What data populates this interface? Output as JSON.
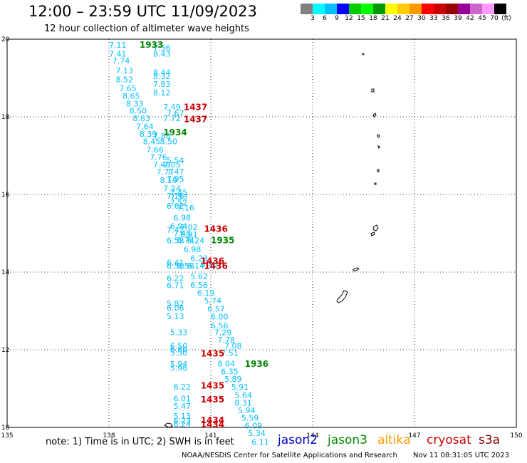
{
  "header": {
    "title": "12:00 – 23:59 UTC 11/09/2023",
    "subtitle": "12 hour collection of altimeter wave heights"
  },
  "colorbar": {
    "colors": [
      "#808080",
      "#00ffff",
      "#00bfff",
      "#0000ff",
      "#00cc00",
      "#00ff00",
      "#009900",
      "#ffff00",
      "#ffcc00",
      "#ff9900",
      "#ff0000",
      "#cc0000",
      "#990000",
      "#990099",
      "#cc66cc",
      "#ff99ff",
      "#000000"
    ],
    "tick_labels": [
      "3",
      "6",
      "9",
      "12",
      "15",
      "18",
      "21",
      "24",
      "27",
      "30",
      "33",
      "36",
      "39",
      "42",
      "45",
      "70",
      "(ft)"
    ]
  },
  "map": {
    "x_ticks": [
      135,
      138,
      141,
      144,
      147,
      150
    ],
    "y_ticks": [
      10,
      12,
      14,
      16,
      18,
      20
    ],
    "swh_color": "#00bfff",
    "swh_labels": [
      {
        "lon": 138.0,
        "lat": 19.78,
        "v": "7.11"
      },
      {
        "lon": 139.3,
        "lat": 19.71,
        "v": "7.56"
      },
      {
        "lon": 138.0,
        "lat": 19.55,
        "v": "7.41"
      },
      {
        "lon": 139.3,
        "lat": 19.55,
        "v": "8.43"
      },
      {
        "lon": 138.1,
        "lat": 19.38,
        "v": "7.74"
      },
      {
        "lon": 138.2,
        "lat": 19.12,
        "v": "7.13"
      },
      {
        "lon": 139.3,
        "lat": 19.07,
        "v": "8.44"
      },
      {
        "lon": 139.3,
        "lat": 18.97,
        "v": "8.32"
      },
      {
        "lon": 138.2,
        "lat": 18.89,
        "v": "8.52"
      },
      {
        "lon": 139.3,
        "lat": 18.77,
        "v": "7.83"
      },
      {
        "lon": 138.3,
        "lat": 18.66,
        "v": "7.65"
      },
      {
        "lon": 139.3,
        "lat": 18.55,
        "v": "8.12"
      },
      {
        "lon": 138.4,
        "lat": 18.47,
        "v": "8.65"
      },
      {
        "lon": 138.5,
        "lat": 18.27,
        "v": "8.33"
      },
      {
        "lon": 139.6,
        "lat": 18.18,
        "v": "7.49"
      },
      {
        "lon": 138.6,
        "lat": 18.08,
        "v": "8.50"
      },
      {
        "lon": 139.7,
        "lat": 18.02,
        "v": "7.67"
      },
      {
        "lon": 138.7,
        "lat": 17.89,
        "v": "8.83"
      },
      {
        "lon": 139.6,
        "lat": 17.89,
        "v": "7.72"
      },
      {
        "lon": 138.8,
        "lat": 17.68,
        "v": "7.64"
      },
      {
        "lon": 138.9,
        "lat": 17.49,
        "v": "8.39"
      },
      {
        "lon": 139.3,
        "lat": 17.44,
        "v": "7.88"
      },
      {
        "lon": 139.0,
        "lat": 17.29,
        "v": "8.45"
      },
      {
        "lon": 139.5,
        "lat": 17.29,
        "v": "8.50"
      },
      {
        "lon": 139.1,
        "lat": 17.08,
        "v": "7.66"
      },
      {
        "lon": 139.2,
        "lat": 16.89,
        "v": "7.76"
      },
      {
        "lon": 139.7,
        "lat": 16.81,
        "v": "5.54"
      },
      {
        "lon": 139.3,
        "lat": 16.7,
        "v": "7.49"
      },
      {
        "lon": 139.6,
        "lat": 16.7,
        "v": "7.05"
      },
      {
        "lon": 139.4,
        "lat": 16.51,
        "v": "7.77"
      },
      {
        "lon": 139.7,
        "lat": 16.51,
        "v": "7.47"
      },
      {
        "lon": 139.5,
        "lat": 16.29,
        "v": "8.19"
      },
      {
        "lon": 139.7,
        "lat": 16.33,
        "v": "7.95"
      },
      {
        "lon": 139.6,
        "lat": 16.08,
        "v": "7.24"
      },
      {
        "lon": 139.8,
        "lat": 15.98,
        "v": "7.45"
      },
      {
        "lon": 139.7,
        "lat": 15.89,
        "v": "7.16"
      },
      {
        "lon": 139.8,
        "lat": 15.87,
        "v": "7.53"
      },
      {
        "lon": 139.8,
        "lat": 15.72,
        "v": "7.52"
      },
      {
        "lon": 139.7,
        "lat": 15.63,
        "v": "6.62"
      },
      {
        "lon": 140.0,
        "lat": 15.59,
        "v": "7.16"
      },
      {
        "lon": 139.9,
        "lat": 15.33,
        "v": "6.98"
      },
      {
        "lon": 139.8,
        "lat": 15.11,
        "v": "6.94"
      },
      {
        "lon": 140.1,
        "lat": 15.08,
        "v": "7.02"
      },
      {
        "lon": 139.7,
        "lat": 15.02,
        "v": "7.42"
      },
      {
        "lon": 139.9,
        "lat": 14.93,
        "v": "7.48"
      },
      {
        "lon": 140.1,
        "lat": 14.9,
        "v": "6.91"
      },
      {
        "lon": 139.7,
        "lat": 14.74,
        "v": "6.58"
      },
      {
        "lon": 140.0,
        "lat": 14.75,
        "v": "6.74"
      },
      {
        "lon": 140.3,
        "lat": 14.74,
        "v": "6.24"
      },
      {
        "lon": 140.2,
        "lat": 14.51,
        "v": "6.98"
      },
      {
        "lon": 140.4,
        "lat": 14.28,
        "v": "6.23"
      },
      {
        "lon": 139.7,
        "lat": 14.17,
        "v": "6.41"
      },
      {
        "lon": 140.7,
        "lat": 14.14,
        "v": "6.86"
      },
      {
        "lon": 139.7,
        "lat": 14.09,
        "v": "6.50"
      },
      {
        "lon": 140.0,
        "lat": 14.09,
        "v": "6.58"
      },
      {
        "lon": 140.3,
        "lat": 14.09,
        "v": "6.14"
      },
      {
        "lon": 140.4,
        "lat": 13.82,
        "v": "5.62"
      },
      {
        "lon": 139.7,
        "lat": 13.77,
        "v": "6.22"
      },
      {
        "lon": 139.7,
        "lat": 13.59,
        "v": "6.71"
      },
      {
        "lon": 140.4,
        "lat": 13.6,
        "v": "6.56"
      },
      {
        "lon": 140.6,
        "lat": 13.39,
        "v": "6.19"
      },
      {
        "lon": 140.8,
        "lat": 13.19,
        "v": "5.74"
      },
      {
        "lon": 139.7,
        "lat": 13.12,
        "v": "5.82"
      },
      {
        "lon": 139.7,
        "lat": 13.01,
        "v": "6.06"
      },
      {
        "lon": 140.9,
        "lat": 12.98,
        "v": "6.57"
      },
      {
        "lon": 139.7,
        "lat": 12.79,
        "v": "5.13"
      },
      {
        "lon": 141.0,
        "lat": 12.78,
        "v": "6.00"
      },
      {
        "lon": 141.0,
        "lat": 12.55,
        "v": "6.56"
      },
      {
        "lon": 139.8,
        "lat": 12.38,
        "v": "5.33"
      },
      {
        "lon": 141.1,
        "lat": 12.38,
        "v": "7.29"
      },
      {
        "lon": 141.2,
        "lat": 12.18,
        "v": "7.78"
      },
      {
        "lon": 139.8,
        "lat": 12.03,
        "v": "6.50"
      },
      {
        "lon": 141.4,
        "lat": 12.03,
        "v": "7.08"
      },
      {
        "lon": 139.8,
        "lat": 11.94,
        "v": "6.80"
      },
      {
        "lon": 139.8,
        "lat": 11.85,
        "v": "5.50"
      },
      {
        "lon": 141.3,
        "lat": 11.84,
        "v": "7.51"
      },
      {
        "lon": 139.8,
        "lat": 11.56,
        "v": "5.94"
      },
      {
        "lon": 141.2,
        "lat": 11.57,
        "v": "8.04"
      },
      {
        "lon": 139.8,
        "lat": 11.46,
        "v": "5.96"
      },
      {
        "lon": 141.3,
        "lat": 11.37,
        "v": "6.35"
      },
      {
        "lon": 141.4,
        "lat": 11.17,
        "v": "5.89"
      },
      {
        "lon": 139.9,
        "lat": 10.97,
        "v": "6.22"
      },
      {
        "lon": 141.6,
        "lat": 10.97,
        "v": "5.91"
      },
      {
        "lon": 141.7,
        "lat": 10.76,
        "v": "5.64"
      },
      {
        "lon": 139.9,
        "lat": 10.67,
        "v": "6.01"
      },
      {
        "lon": 141.7,
        "lat": 10.56,
        "v": "8.31"
      },
      {
        "lon": 139.9,
        "lat": 10.48,
        "v": "5.47"
      },
      {
        "lon": 141.8,
        "lat": 10.37,
        "v": "5.94"
      },
      {
        "lon": 139.9,
        "lat": 10.22,
        "v": "5.13"
      },
      {
        "lon": 141.9,
        "lat": 10.17,
        "v": "5.59"
      },
      {
        "lon": 139.9,
        "lat": 10.1,
        "v": "6.23"
      },
      {
        "lon": 139.9,
        "lat": 10.02,
        "v": "6.24"
      },
      {
        "lon": 142.0,
        "lat": 9.97,
        "v": "6.09"
      },
      {
        "lon": 142.1,
        "lat": 9.78,
        "v": "5.34"
      },
      {
        "lon": 142.2,
        "lat": 9.55,
        "v": "6.11"
      }
    ],
    "times": [
      {
        "lon": 138.9,
        "lat": 19.78,
        "v": "1933",
        "sat": "jason3"
      },
      {
        "lon": 140.2,
        "lat": 18.17,
        "v": "1437",
        "sat": "cryosat"
      },
      {
        "lon": 140.2,
        "lat": 17.86,
        "v": "1437",
        "sat": "cryosat"
      },
      {
        "lon": 139.6,
        "lat": 17.52,
        "v": "1934",
        "sat": "jason3"
      },
      {
        "lon": 140.8,
        "lat": 15.04,
        "v": "1436",
        "sat": "cryosat"
      },
      {
        "lon": 141.0,
        "lat": 14.74,
        "v": "1935",
        "sat": "jason3"
      },
      {
        "lon": 140.7,
        "lat": 14.21,
        "v": "1436",
        "sat": "cryosat"
      },
      {
        "lon": 140.8,
        "lat": 14.08,
        "v": "1436",
        "sat": "cryosat"
      },
      {
        "lon": 140.7,
        "lat": 11.83,
        "v": "1435",
        "sat": "cryosat"
      },
      {
        "lon": 142.0,
        "lat": 11.56,
        "v": "1936",
        "sat": "jason3"
      },
      {
        "lon": 140.7,
        "lat": 11.0,
        "v": "1435",
        "sat": "cryosat"
      },
      {
        "lon": 140.7,
        "lat": 10.64,
        "v": "1435",
        "sat": "cryosat"
      },
      {
        "lon": 140.7,
        "lat": 10.11,
        "v": "1434",
        "sat": "cryosat"
      },
      {
        "lon": 140.7,
        "lat": 10.0,
        "v": "1434",
        "sat": "cryosat"
      }
    ]
  },
  "note": {
    "text": "note:  1) Time is in UTC;  2) SWH is in feet"
  },
  "satellites": [
    {
      "name": "jason2",
      "color": "#0000cc"
    },
    {
      "name": "jason3",
      "color": "#008800"
    },
    {
      "name": "altika",
      "color": "#ff9900"
    },
    {
      "name": "cryosat",
      "color": "#cc0000"
    },
    {
      "name": "s3a",
      "color": "#880000"
    }
  ],
  "footer": {
    "credit": "NOAA/NESDIS Center for Satellite Applications and Research",
    "timestamp": "Nov 11 08:31:05 UTC 2023"
  }
}
